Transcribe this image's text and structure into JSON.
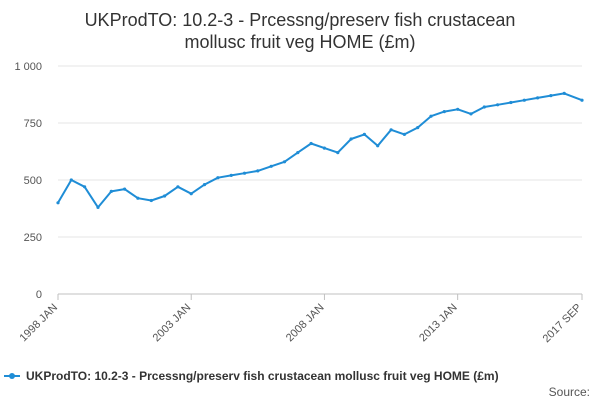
{
  "chart_data": {
    "type": "line",
    "title_lines": [
      "UKProdTO: 10.2-3 - Prcessng/preserv fish crustacean",
      "mollusc fruit veg HOME (£m)"
    ],
    "source_label": "Source:",
    "x_tick_labels": [
      "1998 JAN",
      "2003 JAN",
      "2008 JAN",
      "2013 JAN",
      "2017 SEP"
    ],
    "x_tick_dates": [
      "1998-01",
      "2003-01",
      "2008-01",
      "2013-01",
      "2017-09"
    ],
    "y_tick_labels": [
      "0",
      "250",
      "500",
      "750",
      "1 000"
    ],
    "y_tick_values": [
      0,
      250,
      500,
      750,
      1000
    ],
    "ylim": [
      0,
      1000
    ],
    "xlim": [
      "1998-01",
      "2017-09"
    ],
    "grid": "horizontal",
    "legend_position": "bottom",
    "color": "#1f8dd6",
    "series": [
      {
        "name": "UKProdTO: 10.2-3 - Prcessng/preserv fish crustacean mollusc fruit veg HOME (£m)",
        "x": [
          "1998-01",
          "1998-07",
          "1999-01",
          "1999-07",
          "2000-01",
          "2000-07",
          "2001-01",
          "2001-07",
          "2002-01",
          "2002-07",
          "2003-01",
          "2003-07",
          "2004-01",
          "2004-07",
          "2005-01",
          "2005-07",
          "2006-01",
          "2006-07",
          "2007-01",
          "2007-07",
          "2008-01",
          "2008-07",
          "2009-01",
          "2009-07",
          "2010-01",
          "2010-07",
          "2011-01",
          "2011-07",
          "2012-01",
          "2012-07",
          "2013-01",
          "2013-07",
          "2014-01",
          "2014-07",
          "2015-01",
          "2015-07",
          "2016-01",
          "2016-07",
          "2017-01",
          "2017-09"
        ],
        "values": [
          400,
          500,
          470,
          380,
          450,
          460,
          420,
          410,
          430,
          470,
          440,
          480,
          510,
          520,
          530,
          540,
          560,
          580,
          620,
          660,
          640,
          620,
          680,
          700,
          650,
          720,
          700,
          730,
          780,
          800,
          810,
          790,
          820,
          830,
          840,
          850,
          860,
          870,
          880,
          850
        ]
      }
    ]
  }
}
